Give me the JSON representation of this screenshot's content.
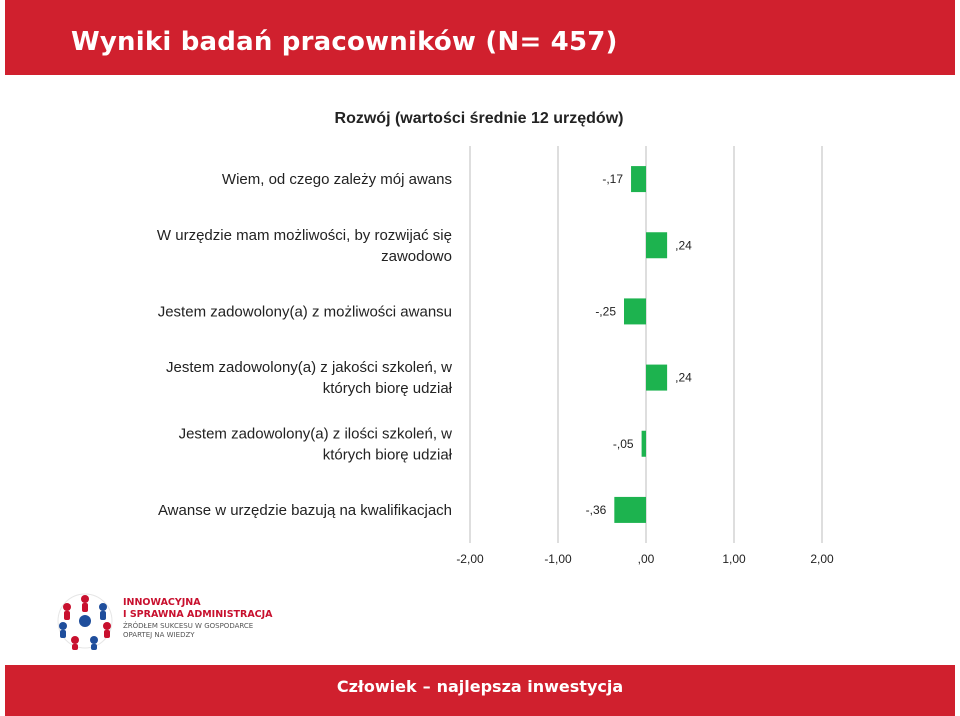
{
  "header": {
    "title": "Wyniki badań pracowników (N= 457)"
  },
  "chart_data": {
    "type": "bar",
    "orientation": "horizontal",
    "title": "Rozwój (wartości średnie 12 urzędów)",
    "categories": [
      [
        "Wiem, od czego zależy mój awans"
      ],
      [
        "W urzędzie mam możliwości, by rozwijać się",
        "zawodowo"
      ],
      [
        "Jestem zadowolony(a) z możliwości awansu"
      ],
      [
        "Jestem zadowolony(a) z jakości szkoleń, w",
        "których biorę udział"
      ],
      [
        "Jestem zadowolony(a) z ilości szkoleń, w",
        "których biorę udział"
      ],
      [
        "Awanse w urzędzie bazują na kwalifikacjach"
      ]
    ],
    "values": [
      -0.17,
      0.24,
      -0.25,
      0.24,
      -0.05,
      -0.36
    ],
    "value_labels": [
      "-,17",
      ",24",
      "-,25",
      ",24",
      "-,05",
      "-,36"
    ],
    "xlim": [
      -2,
      2
    ],
    "xticks": [
      "-2,00",
      "-1,00",
      ",00",
      "1,00",
      "2,00"
    ],
    "xlabel": "",
    "ylabel": "",
    "grid": "vertical",
    "bar_color": "#1db34f"
  },
  "logo": {
    "line1": "INNOWACYJNA",
    "line2": "I SPRAWNA ADMINISTRACJA",
    "line3": "ŹRÓDŁEM SUKCESU W GOSPODARCE",
    "line4": "OPARTEJ NA WIEDZY"
  },
  "footer": {
    "slogan_part1": "Człowiek",
    "slogan_dash": "–",
    "slogan_part2": "najlepsza inwestycja"
  }
}
